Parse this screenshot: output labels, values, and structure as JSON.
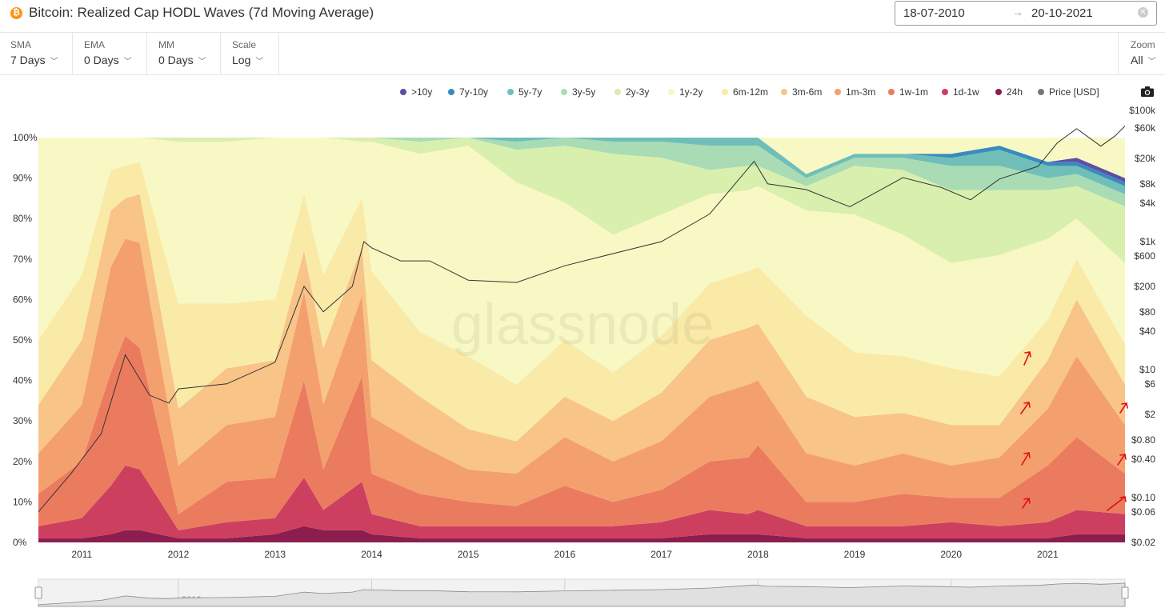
{
  "header": {
    "coin_icon": "₿",
    "title": "Bitcoin: Realized Cap HODL Waves (7d Moving Average)",
    "date_from": "18-07-2010",
    "date_arrow": "→",
    "date_to": "20-10-2021"
  },
  "toolbar": {
    "sma": {
      "label": "SMA",
      "value": "7 Days"
    },
    "ema": {
      "label": "EMA",
      "value": "0 Days"
    },
    "mm": {
      "label": "MM",
      "value": "0 Days"
    },
    "scale": {
      "label": "Scale",
      "value": "Log"
    },
    "zoom": {
      "label": "Zoom",
      "value": "All"
    }
  },
  "watermark": "glassnode",
  "chart_data": {
    "type": "area",
    "title": "Bitcoin: Realized Cap HODL Waves (7d Moving Average)",
    "stacked": true,
    "x": [
      2010.55,
      2011.0,
      2011.3,
      2011.45,
      2011.6,
      2012.0,
      2012.5,
      2013.0,
      2013.3,
      2013.5,
      2013.9,
      2014.0,
      2014.5,
      2015.0,
      2015.5,
      2016.0,
      2016.5,
      2017.0,
      2017.5,
      2017.9,
      2018.0,
      2018.5,
      2019.0,
      2019.5,
      2020.0,
      2020.5,
      2021.0,
      2021.3,
      2021.8
    ],
    "x_ticks": [
      "2011",
      "2012",
      "2013",
      "2014",
      "2015",
      "2016",
      "2017",
      "2018",
      "2019",
      "2020",
      "2021"
    ],
    "y_left_ticks": [
      "0%",
      "10%",
      "20%",
      "30%",
      "40%",
      "50%",
      "60%",
      "70%",
      "80%",
      "90%",
      "100%"
    ],
    "y_right_ticks": [
      "$0.02",
      "$0.06",
      "$0.10",
      "$0.40",
      "$0.80",
      "$2",
      "$6",
      "$10",
      "$40",
      "$80",
      "$200",
      "$600",
      "$1k",
      "$4k",
      "$8k",
      "$20k",
      "$60k",
      "$100k"
    ],
    "ylim": [
      0,
      100
    ],
    "y_right_scale": "log",
    "series": [
      {
        "name": "24h",
        "color": "#8b1e4f",
        "values": [
          1,
          1,
          2,
          3,
          3,
          1,
          1,
          2,
          4,
          3,
          3,
          2,
          1,
          1,
          1,
          1,
          1,
          1,
          2,
          2,
          2,
          1,
          1,
          1,
          1,
          1,
          1,
          2,
          2
        ]
      },
      {
        "name": "1d-1w",
        "color": "#cd3f5f",
        "values": [
          3,
          5,
          12,
          16,
          15,
          2,
          4,
          4,
          12,
          5,
          12,
          5,
          3,
          3,
          3,
          3,
          3,
          4,
          6,
          5,
          6,
          3,
          3,
          3,
          4,
          3,
          4,
          6,
          5
        ]
      },
      {
        "name": "1w-1m",
        "color": "#ea7b5f",
        "values": [
          8,
          14,
          28,
          32,
          30,
          4,
          10,
          10,
          24,
          10,
          26,
          10,
          8,
          6,
          5,
          10,
          6,
          8,
          12,
          14,
          16,
          6,
          6,
          8,
          6,
          7,
          14,
          18,
          10
        ]
      },
      {
        "name": "1m-3m",
        "color": "#f4a06e",
        "values": [
          10,
          14,
          26,
          24,
          26,
          12,
          14,
          15,
          22,
          16,
          20,
          14,
          12,
          8,
          8,
          12,
          10,
          12,
          16,
          18,
          16,
          12,
          9,
          10,
          8,
          10,
          14,
          20,
          12
        ]
      },
      {
        "name": "3m-6m",
        "color": "#f8c488",
        "values": [
          12,
          16,
          14,
          10,
          12,
          14,
          14,
          14,
          10,
          14,
          12,
          14,
          12,
          10,
          8,
          10,
          10,
          12,
          14,
          14,
          14,
          14,
          12,
          10,
          10,
          8,
          12,
          14,
          10
        ]
      },
      {
        "name": "6m-12m",
        "color": "#faeaa8",
        "values": [
          16,
          16,
          10,
          8,
          8,
          26,
          16,
          15,
          14,
          18,
          12,
          22,
          16,
          18,
          14,
          14,
          12,
          14,
          14,
          14,
          14,
          20,
          16,
          14,
          14,
          12,
          10,
          10,
          10
        ]
      },
      {
        "name": "1y-2y",
        "color": "#f8f8c4",
        "values": [
          50,
          34,
          8,
          7,
          6,
          40,
          40,
          40,
          14,
          34,
          14,
          32,
          44,
          52,
          50,
          34,
          34,
          30,
          22,
          20,
          20,
          26,
          34,
          30,
          26,
          30,
          20,
          10,
          20
        ]
      },
      {
        "name": "2y-3y",
        "color": "#d9efae",
        "values": [
          0,
          0,
          0,
          0,
          0,
          1,
          1,
          0,
          0,
          0,
          1,
          1,
          3,
          2,
          8,
          14,
          20,
          14,
          6,
          6,
          5,
          6,
          12,
          16,
          18,
          16,
          12,
          8,
          14
        ]
      },
      {
        "name": "3y-5y",
        "color": "#a9dcb4",
        "values": [
          0,
          0,
          0,
          0,
          0,
          0,
          0,
          0,
          0,
          0,
          0,
          0,
          1,
          1,
          2,
          2,
          3,
          4,
          6,
          5,
          5,
          2,
          2,
          3,
          6,
          6,
          3,
          3,
          3
        ]
      },
      {
        "name": "5y-7y",
        "color": "#6fbfb8",
        "values": [
          0,
          0,
          0,
          0,
          0,
          0,
          0,
          0,
          0,
          0,
          0,
          0,
          0,
          0,
          1,
          1,
          1,
          1,
          2,
          2,
          2,
          1,
          1,
          1,
          2,
          4,
          3,
          2,
          2
        ]
      },
      {
        "name": "7y-10y",
        "color": "#3a8bbd",
        "values": [
          0,
          0,
          0,
          0,
          0,
          0,
          0,
          0,
          0,
          0,
          0,
          0,
          0,
          0,
          0,
          0,
          0,
          0,
          0,
          0,
          0,
          0,
          0,
          0,
          1,
          1,
          1,
          1,
          1
        ]
      },
      {
        "name": ">10y",
        "color": "#5e4fa2",
        "values": [
          0,
          0,
          0,
          0,
          0,
          0,
          0,
          0,
          0,
          0,
          0,
          0,
          0,
          0,
          0,
          0,
          0,
          0,
          0,
          0,
          0,
          0,
          0,
          0,
          0,
          0,
          0,
          1,
          1
        ]
      }
    ],
    "price_series": {
      "name": "Price [USD]",
      "color": "#333333",
      "x": [
        2010.55,
        2010.9,
        2011.2,
        2011.45,
        2011.7,
        2011.9,
        2012.0,
        2012.5,
        2013.0,
        2013.3,
        2013.5,
        2013.8,
        2013.92,
        2014.0,
        2014.3,
        2014.6,
        2015.0,
        2015.5,
        2016.0,
        2016.5,
        2017.0,
        2017.5,
        2017.96,
        2018.1,
        2018.5,
        2018.95,
        2019.5,
        2019.9,
        2020.2,
        2020.5,
        2020.9,
        2021.1,
        2021.3,
        2021.55,
        2021.7,
        2021.8
      ],
      "y": [
        0.06,
        0.25,
        1,
        17,
        4,
        3,
        5,
        6,
        13,
        200,
        80,
        200,
        1000,
        800,
        500,
        500,
        250,
        230,
        420,
        650,
        1000,
        2700,
        18000,
        8000,
        6500,
        3500,
        10000,
        7000,
        4500,
        9500,
        15000,
        35000,
        58000,
        31000,
        45000,
        64000
      ]
    },
    "legend_position": "top-right",
    "grid": false
  }
}
